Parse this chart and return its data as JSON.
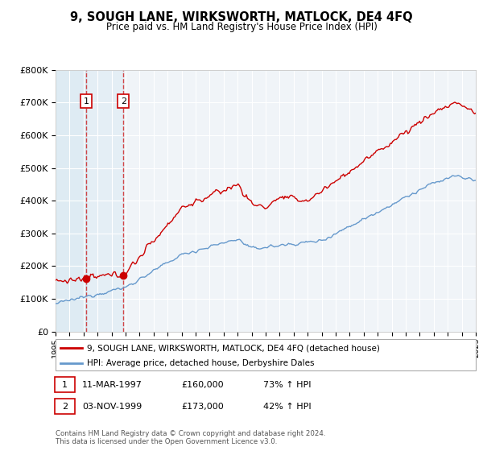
{
  "title": "9, SOUGH LANE, WIRKSWORTH, MATLOCK, DE4 4FQ",
  "subtitle": "Price paid vs. HM Land Registry's House Price Index (HPI)",
  "legend_line1": "9, SOUGH LANE, WIRKSWORTH, MATLOCK, DE4 4FQ (detached house)",
  "legend_line2": "HPI: Average price, detached house, Derbyshire Dales",
  "transaction1_label": "1",
  "transaction1_date": "11-MAR-1997",
  "transaction1_price": "£160,000",
  "transaction1_hpi": "73% ↑ HPI",
  "transaction2_label": "2",
  "transaction2_date": "03-NOV-1999",
  "transaction2_price": "£173,000",
  "transaction2_hpi": "42% ↑ HPI",
  "footer": "Contains HM Land Registry data © Crown copyright and database right 2024.\nThis data is licensed under the Open Government Licence v3.0.",
  "price_line_color": "#cc0000",
  "hpi_line_color": "#6699cc",
  "vline_color": "#cc0000",
  "background_color": "#ffffff",
  "plot_bg_color": "#f0f4f8",
  "grid_color": "#ffffff",
  "shade_color": "#d0e4f0",
  "ylim": [
    0,
    800000
  ],
  "yticks": [
    0,
    100000,
    200000,
    300000,
    400000,
    500000,
    600000,
    700000,
    800000
  ],
  "ytick_labels": [
    "£0",
    "£100K",
    "£200K",
    "£300K",
    "£400K",
    "£500K",
    "£600K",
    "£700K",
    "£800K"
  ],
  "xstart_year": 1995,
  "xend_year": 2025,
  "transaction1_year": 1997.19,
  "transaction2_year": 1999.84
}
